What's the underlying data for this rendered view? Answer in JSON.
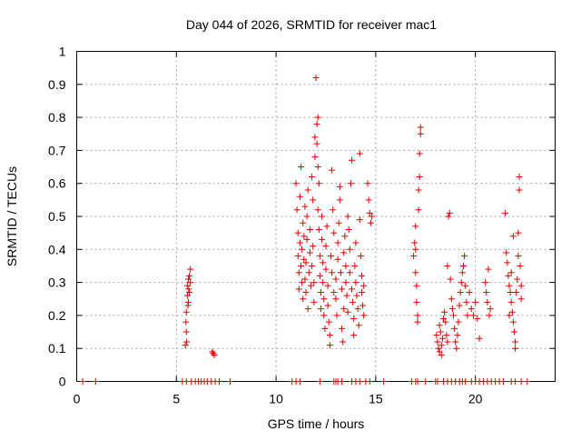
{
  "chart_data": {
    "type": "scatter",
    "title": "Day 044 of 2026, SRMTID for receiver mac1",
    "xlabel": "GPS time / hours",
    "ylabel": "SRMTID / TECUs",
    "xlim": [
      0,
      24
    ],
    "ylim": [
      0,
      1
    ],
    "xticks": [
      0,
      5,
      10,
      15,
      20
    ],
    "yticks": [
      0,
      0.1,
      0.2,
      0.3,
      0.4,
      0.5,
      0.6,
      0.7,
      0.8,
      0.9,
      1
    ],
    "xtick_labels": [
      "0",
      "5",
      "10",
      "15",
      "20"
    ],
    "ytick_labels": [
      "0",
      "0.1",
      "0.2",
      "0.3",
      "0.4",
      "0.5",
      "0.6",
      "0.7",
      "0.8",
      "0.9",
      "1"
    ],
    "grid": true,
    "marker": "+",
    "marker_color": "#e00000",
    "series": [
      {
        "points": [
          [
            0.3,
            0.0
          ],
          [
            0.95,
            0.0
          ],
          [
            5.3,
            0.0
          ],
          [
            5.5,
            0.0
          ],
          [
            5.75,
            0.0
          ],
          [
            5.95,
            0.0
          ],
          [
            6.1,
            0.0
          ],
          [
            6.25,
            0.0
          ],
          [
            6.4,
            0.0
          ],
          [
            6.55,
            0.0
          ],
          [
            6.75,
            0.0
          ],
          [
            6.95,
            0.0
          ],
          [
            7.15,
            0.0
          ],
          [
            7.7,
            0.0
          ],
          [
            5.45,
            0.11
          ],
          [
            5.5,
            0.15
          ],
          [
            5.5,
            0.21
          ],
          [
            5.55,
            0.26
          ],
          [
            5.55,
            0.29
          ],
          [
            5.6,
            0.31
          ],
          [
            5.6,
            0.24
          ],
          [
            5.65,
            0.32
          ],
          [
            5.65,
            0.27
          ],
          [
            5.7,
            0.34
          ],
          [
            5.7,
            0.3
          ],
          [
            5.48,
            0.18
          ],
          [
            5.52,
            0.12
          ],
          [
            5.58,
            0.23
          ],
          [
            5.62,
            0.28
          ],
          [
            6.8,
            0.09
          ],
          [
            6.85,
            0.085
          ],
          [
            6.9,
            0.08
          ],
          [
            10.8,
            0.0
          ],
          [
            11.0,
            0.0
          ],
          [
            11.2,
            0.0
          ],
          [
            12.2,
            0.0
          ],
          [
            12.9,
            0.0
          ],
          [
            13.0,
            0.0
          ],
          [
            13.1,
            0.0
          ],
          [
            13.3,
            0.0
          ],
          [
            13.8,
            0.0
          ],
          [
            14.0,
            0.0
          ],
          [
            14.2,
            0.0
          ],
          [
            14.5,
            0.0
          ],
          [
            14.7,
            0.0
          ],
          [
            15.4,
            0.0
          ],
          [
            16.8,
            0.0
          ],
          [
            17.0,
            0.0
          ],
          [
            17.1,
            0.0
          ],
          [
            17.5,
            0.0
          ],
          [
            18.0,
            0.0
          ],
          [
            18.1,
            0.0
          ],
          [
            18.4,
            0.0
          ],
          [
            18.6,
            0.0
          ],
          [
            18.8,
            0.0
          ],
          [
            19.0,
            0.0
          ],
          [
            19.2,
            0.0
          ],
          [
            19.35,
            0.0
          ],
          [
            19.5,
            0.0
          ],
          [
            19.8,
            0.0
          ],
          [
            20.0,
            0.0
          ],
          [
            20.2,
            0.0
          ],
          [
            20.4,
            0.0
          ],
          [
            20.6,
            0.0
          ],
          [
            20.8,
            0.0
          ],
          [
            21.0,
            0.0
          ],
          [
            21.2,
            0.0
          ],
          [
            21.4,
            0.0
          ],
          [
            21.8,
            0.0
          ],
          [
            22.0,
            0.0
          ],
          [
            22.3,
            0.0
          ],
          [
            22.6,
            0.0
          ],
          [
            11.0,
            0.6
          ],
          [
            11.05,
            0.52
          ],
          [
            11.1,
            0.45
          ],
          [
            11.1,
            0.38
          ],
          [
            11.15,
            0.33
          ],
          [
            11.15,
            0.28
          ],
          [
            11.2,
            0.42
          ],
          [
            11.2,
            0.56
          ],
          [
            11.25,
            0.65
          ],
          [
            11.25,
            0.35
          ],
          [
            11.3,
            0.3
          ],
          [
            11.3,
            0.4
          ],
          [
            11.35,
            0.48
          ],
          [
            11.35,
            0.25
          ],
          [
            11.4,
            0.37
          ],
          [
            11.4,
            0.44
          ],
          [
            11.45,
            0.53
          ],
          [
            11.45,
            0.31
          ],
          [
            11.5,
            0.27
          ],
          [
            11.5,
            0.36
          ],
          [
            11.55,
            0.43
          ],
          [
            11.55,
            0.5
          ],
          [
            11.6,
            0.58
          ],
          [
            11.6,
            0.22
          ],
          [
            11.65,
            0.33
          ],
          [
            11.7,
            0.39
          ],
          [
            11.7,
            0.46
          ],
          [
            11.75,
            0.29
          ],
          [
            11.8,
            0.35
          ],
          [
            11.8,
            0.62
          ],
          [
            11.85,
            0.55
          ],
          [
            11.85,
            0.41
          ],
          [
            11.9,
            0.24
          ],
          [
            11.9,
            0.3
          ],
          [
            11.95,
            0.68
          ],
          [
            11.95,
            0.74
          ],
          [
            12.0,
            0.92
          ],
          [
            12.05,
            0.78
          ],
          [
            12.05,
            0.72
          ],
          [
            12.1,
            0.8
          ],
          [
            12.1,
            0.65
          ],
          [
            12.15,
            0.6
          ],
          [
            12.1,
            0.52
          ],
          [
            12.15,
            0.46
          ],
          [
            12.2,
            0.38
          ],
          [
            12.2,
            0.32
          ],
          [
            12.25,
            0.27
          ],
          [
            12.25,
            0.22
          ],
          [
            12.3,
            0.43
          ],
          [
            12.3,
            0.5
          ],
          [
            12.35,
            0.36
          ],
          [
            12.35,
            0.3
          ],
          [
            12.4,
            0.25
          ],
          [
            12.4,
            0.2
          ],
          [
            12.45,
            0.16
          ],
          [
            12.5,
            0.34
          ],
          [
            12.5,
            0.41
          ],
          [
            12.55,
            0.47
          ],
          [
            12.6,
            0.29
          ],
          [
            12.6,
            0.23
          ],
          [
            12.65,
            0.18
          ],
          [
            12.7,
            0.14
          ],
          [
            12.7,
            0.11
          ],
          [
            12.75,
            0.38
          ],
          [
            12.8,
            0.33
          ],
          [
            12.8,
            0.64
          ],
          [
            12.85,
            0.52
          ],
          [
            12.9,
            0.27
          ],
          [
            12.9,
            0.45
          ],
          [
            13.0,
            0.31
          ],
          [
            13.0,
            0.25
          ],
          [
            13.05,
            0.2
          ],
          [
            13.1,
            0.37
          ],
          [
            13.1,
            0.42
          ],
          [
            13.15,
            0.48
          ],
          [
            13.2,
            0.55
          ],
          [
            13.2,
            0.59
          ],
          [
            13.25,
            0.33
          ],
          [
            13.3,
            0.28
          ],
          [
            13.3,
            0.16
          ],
          [
            13.35,
            0.12
          ],
          [
            13.4,
            0.22
          ],
          [
            13.4,
            0.39
          ],
          [
            13.45,
            0.44
          ],
          [
            13.5,
            0.35
          ],
          [
            13.5,
            0.3
          ],
          [
            13.55,
            0.26
          ],
          [
            13.6,
            0.21
          ],
          [
            13.6,
            0.5
          ],
          [
            13.65,
            0.46
          ],
          [
            13.7,
            0.4
          ],
          [
            13.7,
            0.33
          ],
          [
            13.75,
            0.6
          ],
          [
            13.8,
            0.67
          ],
          [
            13.8,
            0.28
          ],
          [
            13.85,
            0.24
          ],
          [
            13.9,
            0.19
          ],
          [
            13.9,
            0.14
          ],
          [
            13.95,
            0.35
          ],
          [
            14.0,
            0.42
          ],
          [
            14.0,
            0.3
          ],
          [
            14.05,
            0.26
          ],
          [
            14.1,
            0.22
          ],
          [
            14.15,
            0.17
          ],
          [
            14.2,
            0.69
          ],
          [
            14.2,
            0.49
          ],
          [
            14.25,
            0.38
          ],
          [
            14.3,
            0.32
          ],
          [
            14.3,
            0.27
          ],
          [
            14.35,
            0.23
          ],
          [
            14.4,
            0.2
          ],
          [
            14.4,
            0.29
          ],
          [
            14.6,
            0.6
          ],
          [
            14.65,
            0.55
          ],
          [
            14.7,
            0.51
          ],
          [
            14.75,
            0.48
          ],
          [
            14.8,
            0.5
          ],
          [
            16.9,
            0.38
          ],
          [
            16.95,
            0.42
          ],
          [
            17.0,
            0.47
          ],
          [
            17.0,
            0.33
          ],
          [
            17.05,
            0.29
          ],
          [
            17.05,
            0.24
          ],
          [
            17.1,
            0.2
          ],
          [
            17.1,
            0.18
          ],
          [
            17.15,
            0.52
          ],
          [
            17.15,
            0.58
          ],
          [
            17.2,
            0.62
          ],
          [
            17.2,
            0.69
          ],
          [
            17.25,
            0.75
          ],
          [
            17.25,
            0.77
          ],
          [
            17.0,
            0.4
          ],
          [
            18.05,
            0.14
          ],
          [
            18.1,
            0.12
          ],
          [
            18.15,
            0.1
          ],
          [
            18.2,
            0.09
          ],
          [
            18.2,
            0.17
          ],
          [
            18.25,
            0.15
          ],
          [
            18.3,
            0.11
          ],
          [
            18.3,
            0.08
          ],
          [
            18.35,
            0.13
          ],
          [
            18.4,
            0.19
          ],
          [
            18.45,
            0.21
          ],
          [
            18.5,
            0.18
          ],
          [
            18.55,
            0.14
          ],
          [
            18.6,
            0.12
          ],
          [
            18.6,
            0.35
          ],
          [
            18.65,
            0.5
          ],
          [
            18.7,
            0.51
          ],
          [
            18.75,
            0.31
          ],
          [
            18.8,
            0.25
          ],
          [
            18.85,
            0.22
          ],
          [
            18.9,
            0.2
          ],
          [
            18.95,
            0.16
          ],
          [
            19.0,
            0.12
          ],
          [
            19.05,
            0.1
          ],
          [
            19.1,
            0.14
          ],
          [
            19.15,
            0.18
          ],
          [
            19.2,
            0.23
          ],
          [
            19.25,
            0.27
          ],
          [
            19.3,
            0.3
          ],
          [
            19.35,
            0.33
          ],
          [
            19.4,
            0.35
          ],
          [
            19.45,
            0.38
          ],
          [
            19.5,
            0.29
          ],
          [
            19.55,
            0.24
          ],
          [
            19.6,
            0.2
          ],
          [
            19.7,
            0.27
          ],
          [
            19.8,
            0.22
          ],
          [
            19.9,
            0.2
          ],
          [
            20.0,
            0.24
          ],
          [
            20.1,
            0.19
          ],
          [
            20.2,
            0.13
          ],
          [
            20.5,
            0.3
          ],
          [
            20.55,
            0.27
          ],
          [
            20.6,
            0.24
          ],
          [
            20.65,
            0.34
          ],
          [
            20.7,
            0.2
          ],
          [
            20.75,
            0.22
          ],
          [
            21.5,
            0.51
          ],
          [
            21.55,
            0.39
          ],
          [
            21.6,
            0.36
          ],
          [
            21.65,
            0.32
          ],
          [
            21.7,
            0.29
          ],
          [
            21.75,
            0.27
          ],
          [
            21.8,
            0.24
          ],
          [
            21.85,
            0.21
          ],
          [
            21.9,
            0.18
          ],
          [
            21.95,
            0.15
          ],
          [
            22.0,
            0.12
          ],
          [
            22.0,
            0.1
          ],
          [
            21.7,
            0.2
          ],
          [
            21.8,
            0.33
          ],
          [
            21.9,
            0.44
          ],
          [
            22.05,
            0.27
          ],
          [
            22.1,
            0.31
          ],
          [
            22.15,
            0.38
          ],
          [
            22.15,
            0.45
          ],
          [
            22.2,
            0.62
          ],
          [
            22.2,
            0.58
          ],
          [
            22.25,
            0.35
          ],
          [
            22.3,
            0.29
          ],
          [
            22.3,
            0.25
          ]
        ]
      }
    ]
  }
}
